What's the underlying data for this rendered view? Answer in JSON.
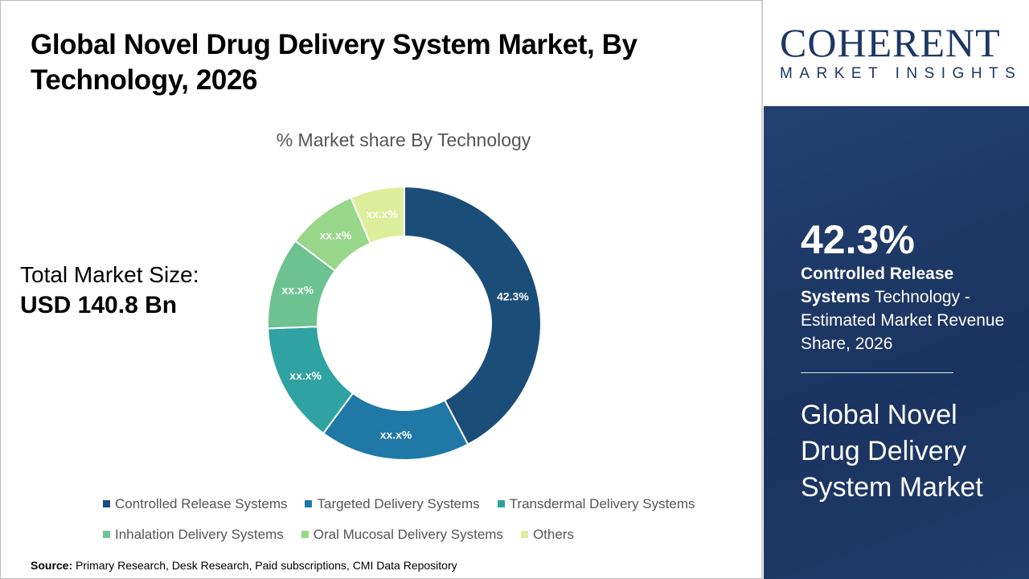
{
  "title": "Global Novel Drug Delivery System Market, By Technology, 2026",
  "total_market": {
    "label": "Total Market Size:",
    "value": "USD 140.8 Bn"
  },
  "source": {
    "label": "Source:",
    "text": " Primary Research, Desk Research, Paid subscriptions, CMI Data Repository"
  },
  "logo": {
    "name": "COHERENT",
    "tagline": "MARKET INSIGHTS"
  },
  "panel": {
    "highlight": "42.3%",
    "desc_bold": "Controlled Release Systems",
    "desc_rest": " Technology - Estimated Market Revenue Share, 2026",
    "market": "Global Novel Drug Delivery System Market",
    "bg_color": "#1e3a6b"
  },
  "chart_data": {
    "type": "pie",
    "subtype": "donut",
    "title": "% Market share By Technology",
    "legend_position": "bottom",
    "categories": [
      "Controlled Release Systems",
      "Targeted Delivery Systems",
      "Transdermal Delivery Systems",
      "Inhalation Delivery Systems",
      "Oral Mucosal Delivery Systems",
      "Others"
    ],
    "values": [
      42.3,
      17.8,
      14.3,
      10.9,
      8.3,
      6.4
    ],
    "data_labels": [
      "42.3%",
      "xx.x%",
      "xx.x%",
      "xx.x%",
      "xx.x%",
      "xx.x%"
    ],
    "colors": [
      "#1b4d79",
      "#1f78a6",
      "#2fa3a1",
      "#6cc290",
      "#98d68a",
      "#dcee9b"
    ]
  }
}
